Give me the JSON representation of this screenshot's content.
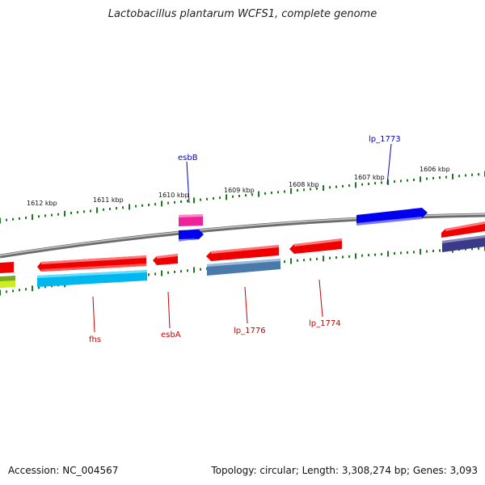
{
  "title": "Lactobacillus plantarum WCFS1, complete genome",
  "footer": {
    "accession": "Accession: NC_004567",
    "summary": "Topology: circular; Length: 3,308,274 bp; Genes: 3,093"
  },
  "scale": {
    "tick_labels": [
      "1612 kbp",
      "1611 kbp",
      "1610 kbp",
      "1609 kbp",
      "1608 kbp",
      "1607 kbp",
      "1606 kbp"
    ]
  },
  "genes": {
    "esbB": "esbB",
    "lp_1773": "lp_1773",
    "fhs": "fhs",
    "esbA": "esbA",
    "lp_1776": "lp_1776",
    "lp_1774": "lp_1774"
  },
  "colors": {
    "backbone": "#888888",
    "tick": "#1e7a1e",
    "forward_label": "#0000cc",
    "reverse_label": "#cc0000",
    "red_feature": "#ee0000",
    "blue_feature": "#0000ee",
    "pink_feature": "#ee2299",
    "cyan_feature": "#00b8ee",
    "steel_feature": "#4a7aaa",
    "navy_feature": "#3a3a88",
    "green_feature": "#88cc22"
  }
}
